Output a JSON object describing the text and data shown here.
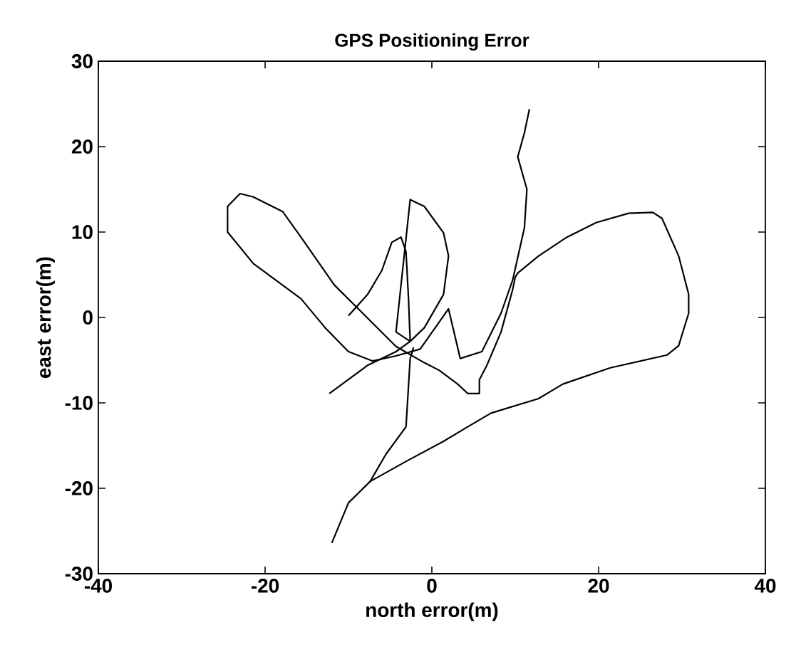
{
  "chart_data": {
    "type": "line",
    "title": "GPS Positioning Error",
    "xlabel": "north error(m)",
    "ylabel": "east error(m)",
    "xlim": [
      -40,
      40
    ],
    "ylim": [
      -30,
      30
    ],
    "xticks": [
      -40,
      -20,
      0,
      20,
      40
    ],
    "yticks": [
      -30,
      -20,
      -10,
      0,
      10,
      20,
      30
    ],
    "grid": false,
    "series": [
      {
        "color": "#000000",
        "x": [
          -10.0,
          -7.7,
          -6.0,
          -4.8,
          -3.7,
          -3.1,
          -2.8,
          -2.6,
          -4.3,
          -2.6,
          -0.9,
          1.4,
          2.0,
          1.4,
          -0.9,
          -2.6,
          -4.3,
          -7.7,
          -12.3
        ],
        "values": [
          0.2,
          2.7,
          5.5,
          8.8,
          9.4,
          7.7,
          2.2,
          -2.8,
          -1.7,
          13.8,
          13.0,
          9.9,
          7.2,
          2.7,
          -1.2,
          -2.8,
          -4.0,
          -5.6,
          -8.9
        ]
      },
      {
        "color": "#000000",
        "x": [
          -12.0,
          -10.0,
          -7.4,
          -5.5,
          -3.1,
          -2.6,
          -2.2
        ],
        "values": [
          -26.4,
          -21.7,
          -19.2,
          -16.0,
          -12.8,
          -4.8,
          -3.5
        ]
      },
      {
        "color": "#000000",
        "x": [
          -7.4,
          -3.0,
          1.4,
          4.3,
          7.1,
          12.8,
          15.7,
          21.4,
          28.2,
          29.6,
          30.8,
          30.8,
          29.6,
          27.6,
          26.5,
          23.6,
          19.7,
          16.2,
          12.8,
          10.3,
          10.0,
          9.7,
          8.3,
          6.6,
          5.7,
          5.7,
          4.3,
          3.1,
          0.9,
          -0.9,
          -4.3,
          -8.3,
          -11.7,
          -15.7,
          -17.9,
          -21.4,
          -23.0,
          -24.5,
          -24.5,
          -21.4,
          -15.7,
          -12.8,
          -10.0,
          -7.1,
          -4.3,
          -1.4,
          2.0,
          3.4,
          6.0,
          8.3,
          9.7,
          11.1,
          11.4,
          10.3,
          11.1,
          11.7
        ],
        "values": [
          -19.2,
          -16.8,
          -14.5,
          -12.8,
          -11.2,
          -9.5,
          -7.8,
          -5.9,
          -4.4,
          -3.3,
          0.5,
          2.7,
          7.2,
          11.6,
          12.3,
          12.2,
          11.1,
          9.4,
          7.2,
          5.2,
          4.7,
          3.3,
          -1.7,
          -5.6,
          -7.3,
          -8.9,
          -8.9,
          -7.8,
          -6.2,
          -5.3,
          -3.4,
          0.5,
          3.8,
          9.4,
          12.4,
          14.1,
          14.5,
          13.0,
          10.0,
          6.3,
          2.2,
          -1.2,
          -4.0,
          -5.1,
          -4.5,
          -3.7,
          1.0,
          -4.8,
          -4.0,
          0.5,
          4.4,
          10.5,
          15.0,
          18.8,
          21.6,
          24.4
        ]
      }
    ]
  }
}
